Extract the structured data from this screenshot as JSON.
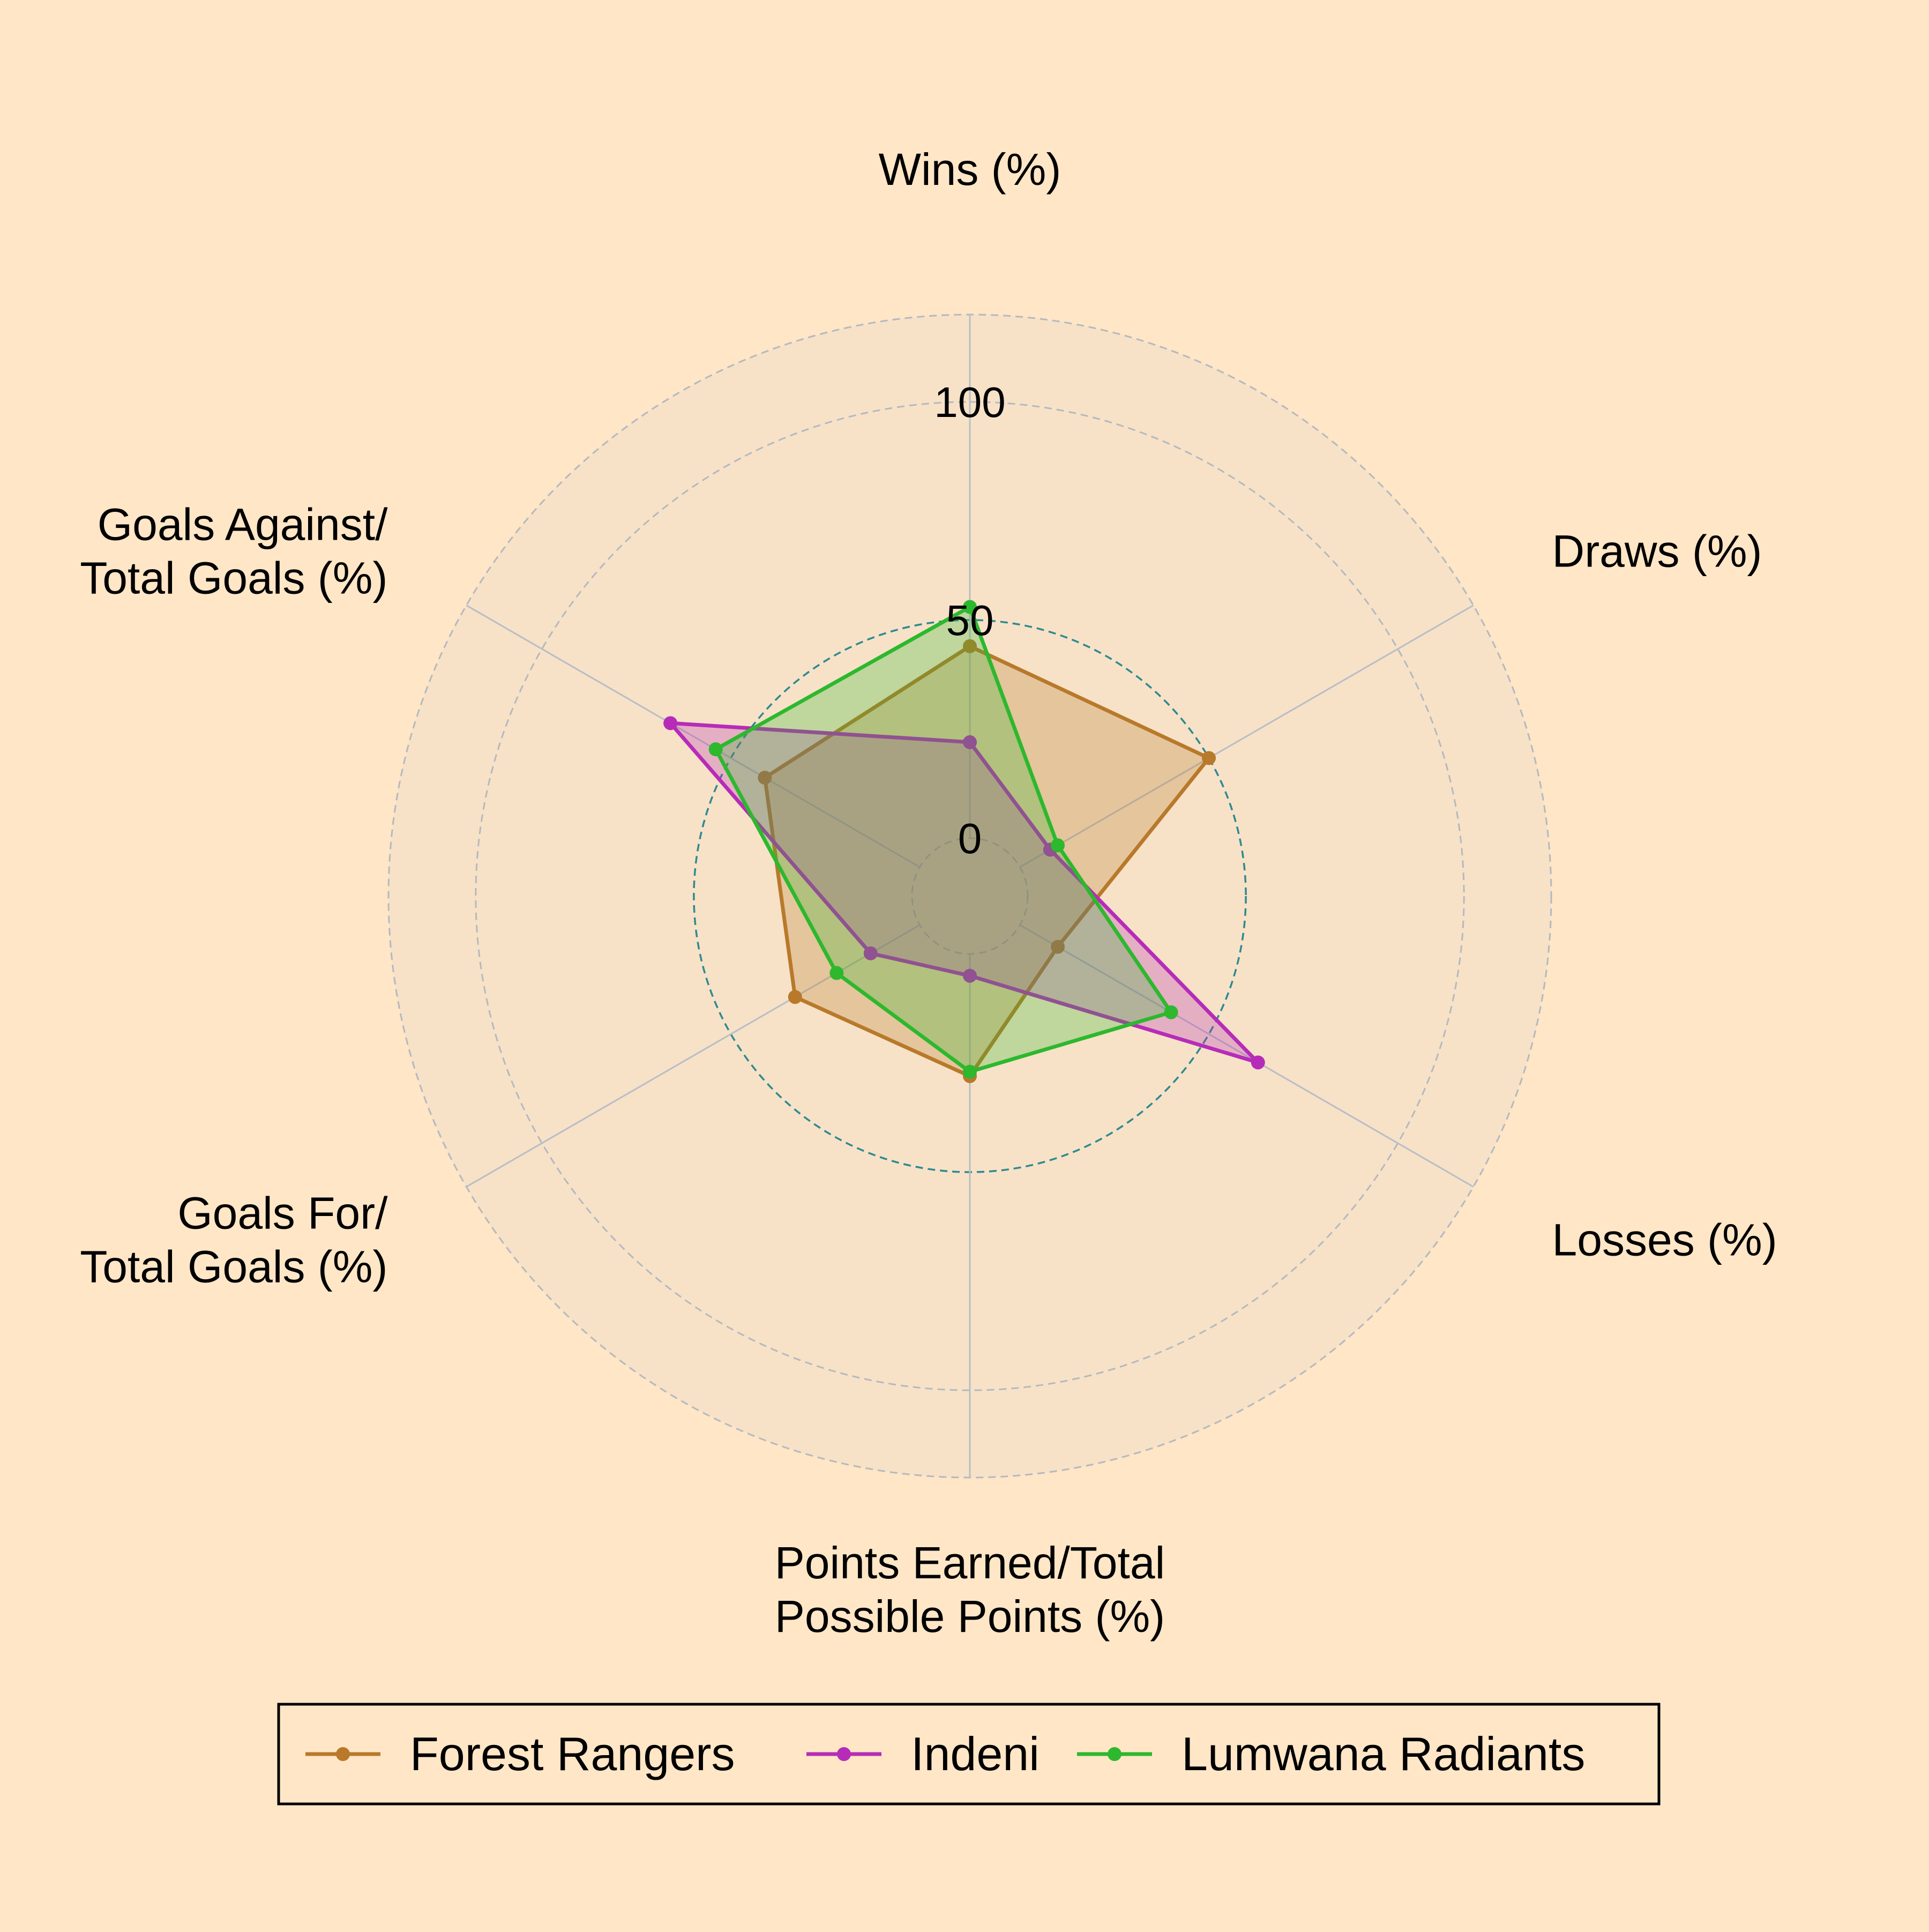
{
  "chart_data": {
    "type": "radar",
    "title": "",
    "axes": [
      {
        "label_lines": [
          "Wins (%)"
        ]
      },
      {
        "label_lines": [
          "Draws (%)"
        ]
      },
      {
        "label_lines": [
          "Losses (%)"
        ]
      },
      {
        "label_lines": [
          "Points Earned/Total",
          "Possible Points (%)"
        ]
      },
      {
        "label_lines": [
          "Goals For/",
          "Total Goals (%)"
        ]
      },
      {
        "label_lines": [
          "Goals Against/",
          "Total Goals (%)"
        ]
      }
    ],
    "radial_range": [
      -20,
      120
    ],
    "radial_tick_labels": [
      "0",
      "50",
      "100"
    ],
    "radial_tick_values": [
      0,
      50,
      100
    ],
    "gridlines": [
      0,
      50,
      100,
      120
    ],
    "series": [
      {
        "name": "Forest Rangers",
        "color": "#B8792A",
        "values": [
          44,
          50,
          10,
          28,
          33,
          41
        ]
      },
      {
        "name": "Indeni",
        "color": "#B62CB8",
        "values": [
          22,
          8,
          63,
          5,
          13,
          66
        ]
      },
      {
        "name": "Lumwana Radiants",
        "color": "#2DB82E",
        "values": [
          53,
          10,
          40,
          27,
          22,
          54
        ]
      }
    ],
    "legend": {
      "position": "bottom",
      "entries": [
        "Forest Rangers",
        "Indeni",
        "Lumwana Radiants"
      ]
    }
  }
}
